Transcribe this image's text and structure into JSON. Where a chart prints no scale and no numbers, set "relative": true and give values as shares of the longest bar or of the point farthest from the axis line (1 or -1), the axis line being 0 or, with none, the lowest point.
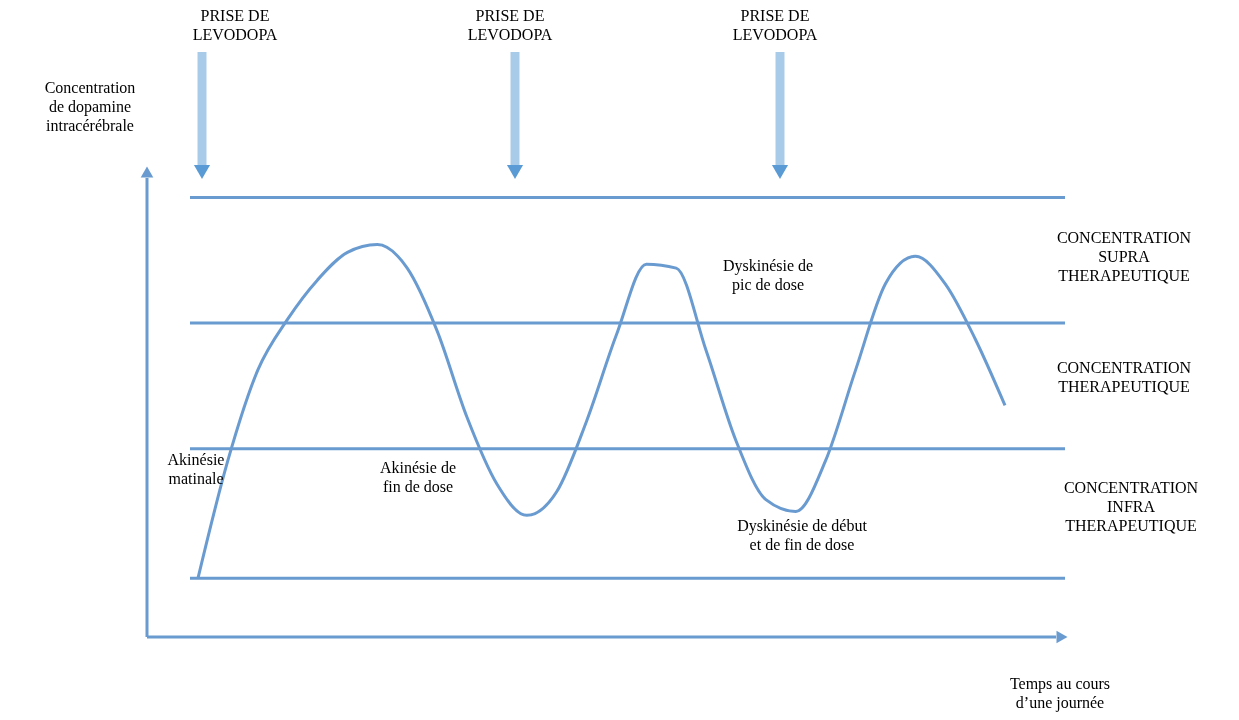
{
  "chart_data": {
    "type": "line",
    "relative": true,
    "xlabel": "Temps au cours\nd’une journée",
    "categories": [
      null,
      null,
      null,
      null,
      null,
      null,
      null,
      null,
      null,
      null,
      null,
      null,
      null,
      null,
      null,
      null,
      null,
      null,
      null,
      null,
      null,
      null,
      null,
      null,
      null,
      null,
      null,
      null
    ],
    "series": [
      {
        "color": "#6a9bd0",
        "values": [
          0.15,
          0.45,
          0.68,
          0.81,
          0.91,
          0.98,
          1.0,
          0.94,
          0.78,
          0.56,
          0.39,
          0.31,
          0.37,
          0.55,
          0.77,
          0.95,
          0.94,
          0.73,
          0.5,
          0.35,
          0.32,
          0.45,
          0.68,
          0.9,
          0.97,
          0.9,
          0.76,
          0.59
        ]
      }
    ],
    "ref_lines": [
      {
        "axis": "y",
        "value": 1.12,
        "color": "#6a9bd0"
      },
      {
        "axis": "y",
        "value": 0.8,
        "color": "#6a9bd0"
      },
      {
        "axis": "y",
        "value": 0.48,
        "color": "#6a9bd0"
      },
      {
        "axis": "y",
        "value": 0.15,
        "color": "#6a9bd0"
      }
    ],
    "annotations": [
      "PRISE DE\nLEVODOPA",
      "PRISE DE\nLEVODOPA",
      "PRISE DE\nLEVODOPA",
      "CONCENTRATION\nSUPRA\nTHERAPEUTIQUE",
      "CONCENTRATION\nTHERAPEUTIQUE",
      "CONCENTRATION\nINFRA\nTHERAPEUTIQUE",
      "Akinésie\nmatinale",
      "Akinésie de\nfin de dose",
      "Dyskinésie de\npic de dose",
      "Dyskinésie de début\net de fin de dose",
      "Concentration\nde dopamine\nintracérébrale"
    ]
  }
}
